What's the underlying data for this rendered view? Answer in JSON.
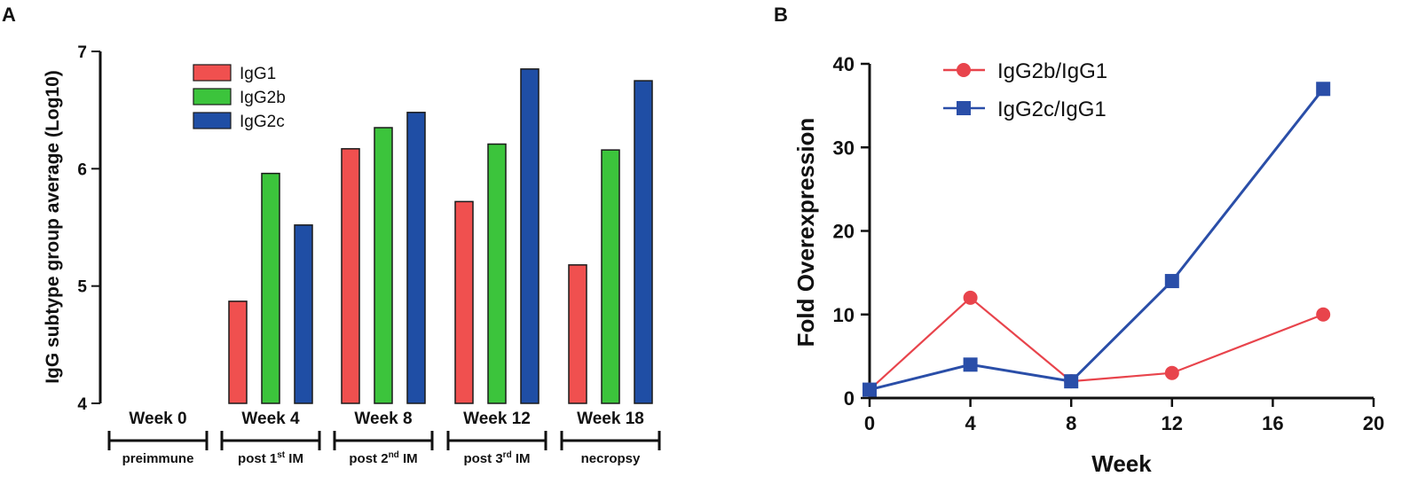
{
  "chart_data": [
    {
      "panel": "A",
      "type": "bar",
      "ylabel": "IgG subtype group average (Log10)",
      "xlabel": "",
      "ylim": [
        4,
        7
      ],
      "yticks": [
        "4",
        "5",
        "6",
        "7"
      ],
      "categories": [
        "Week 0",
        "Week 4",
        "Week 8",
        "Week 12",
        "Week 18"
      ],
      "category_notes": [
        {
          "pre": "preimmune",
          "sup": "",
          "post": ""
        },
        {
          "pre": "post 1",
          "sup": "st",
          "post": " IM"
        },
        {
          "pre": "post 2",
          "sup": "nd",
          "post": " IM"
        },
        {
          "pre": "post 3",
          "sup": "rd",
          "post": " IM"
        },
        {
          "pre": "necropsy",
          "sup": "",
          "post": ""
        }
      ],
      "legend_position": "top-left",
      "series": [
        {
          "name": "IgG1",
          "color": "#f0504f",
          "values": [
            null,
            4.87,
            6.17,
            5.72,
            5.18
          ]
        },
        {
          "name": "IgG2b",
          "color": "#3cc43c",
          "values": [
            null,
            5.96,
            6.35,
            6.21,
            6.16
          ]
        },
        {
          "name": "IgG2c",
          "color": "#1f4ea5",
          "values": [
            null,
            5.52,
            6.48,
            6.85,
            6.75
          ]
        }
      ]
    },
    {
      "panel": "B",
      "type": "line",
      "xlabel": "Week",
      "ylabel": "Fold Overexpression",
      "xlim": [
        0,
        20
      ],
      "ylim": [
        0,
        40
      ],
      "xticks": [
        "0",
        "4",
        "8",
        "12",
        "16",
        "20"
      ],
      "yticks": [
        "0",
        "10",
        "20",
        "30",
        "40"
      ],
      "legend_position": "top-left",
      "series": [
        {
          "name": "IgG2b/IgG1",
          "color": "#e8444c",
          "marker": "circle",
          "x": [
            0,
            4,
            8,
            12,
            18
          ],
          "y": [
            1,
            12,
            2,
            3,
            10
          ]
        },
        {
          "name": "IgG2c/IgG1",
          "color": "#2a4ea8",
          "marker": "square",
          "x": [
            0,
            4,
            8,
            12,
            18
          ],
          "y": [
            1,
            4,
            2,
            14,
            37
          ]
        }
      ]
    }
  ]
}
